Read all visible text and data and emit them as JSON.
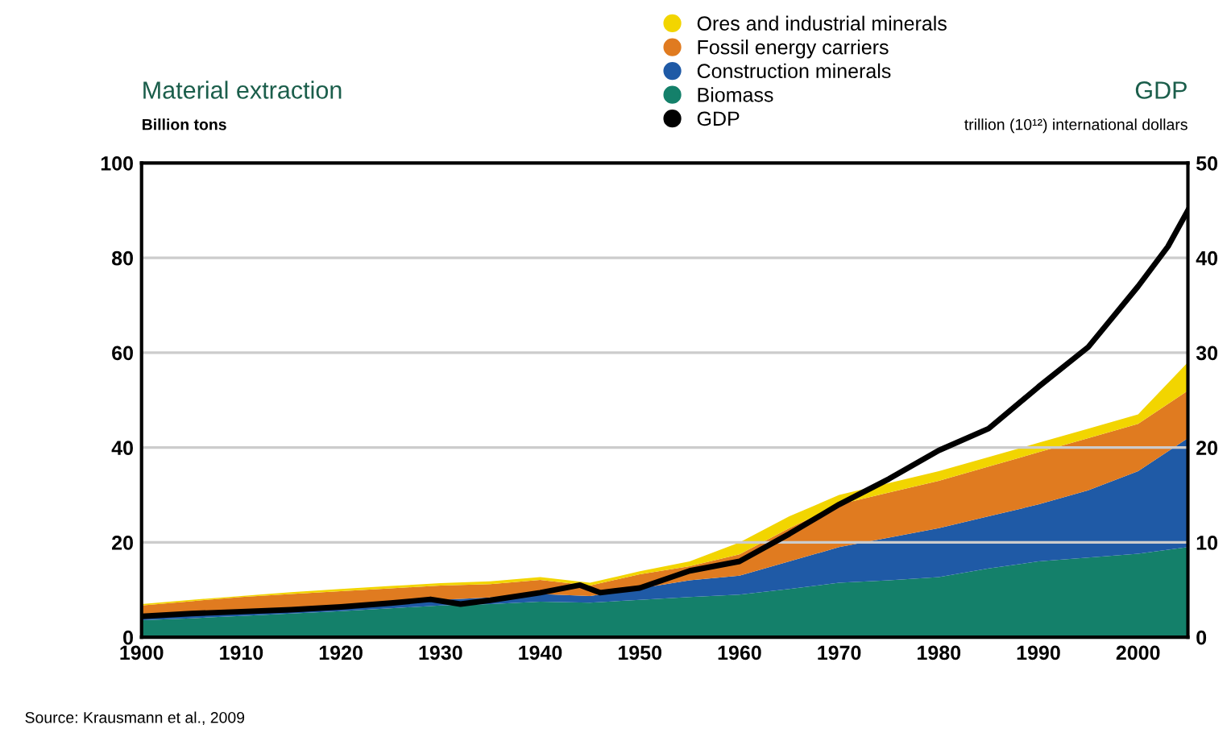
{
  "chart_data": {
    "type": "area",
    "stacked": true,
    "x": [
      1900,
      1905,
      1910,
      1915,
      1920,
      1925,
      1930,
      1935,
      1940,
      1945,
      1950,
      1955,
      1960,
      1965,
      1970,
      1975,
      1980,
      1985,
      1990,
      1995,
      2000,
      2005
    ],
    "series": [
      {
        "name": "Biomass",
        "color": "#14806a",
        "values": [
          3.6,
          4.0,
          4.5,
          5.0,
          5.5,
          6.1,
          6.7,
          7.0,
          7.5,
          7.3,
          7.9,
          8.5,
          9.0,
          10.2,
          11.5,
          12.0,
          12.7,
          14.5,
          16.0,
          16.8,
          17.6,
          19.0
        ]
      },
      {
        "name": "Construction minerals",
        "color": "#1f5aa6",
        "values": [
          0.9,
          1.0,
          1.0,
          1.1,
          1.2,
          1.2,
          1.2,
          1.4,
          1.6,
          1.4,
          2.4,
          3.5,
          4.0,
          5.8,
          7.5,
          9.0,
          10.3,
          11.0,
          12.0,
          14.2,
          17.4,
          23.0
        ]
      },
      {
        "name": "Fossil energy carriers",
        "color": "#e07b20",
        "values": [
          2.2,
          2.6,
          3.0,
          3.0,
          3.0,
          3.0,
          3.0,
          2.8,
          3.0,
          2.2,
          3.0,
          3.0,
          4.5,
          7.0,
          9.0,
          9.5,
          10.0,
          10.5,
          11.0,
          11.0,
          10.0,
          10.0
        ]
      },
      {
        "name": "Ores and industrial minerals",
        "color": "#f2d500",
        "values": [
          0.3,
          0.3,
          0.2,
          0.4,
          0.5,
          0.5,
          0.5,
          0.6,
          0.6,
          0.6,
          0.6,
          1.0,
          2.5,
          2.5,
          2.0,
          2.0,
          2.0,
          2.0,
          2.0,
          2.0,
          2.0,
          6.0
        ]
      },
      {
        "name": "GDP",
        "type": "line",
        "axis": "y2",
        "color": "#000000",
        "x": [
          1900,
          1905,
          1910,
          1915,
          1920,
          1925,
          1929,
          1932,
          1935,
          1940,
          1944,
          1946,
          1950,
          1955,
          1960,
          1965,
          1970,
          1975,
          1980,
          1985,
          1990,
          1995,
          2000,
          2003,
          2005
        ],
        "values": [
          2.2,
          2.5,
          2.7,
          2.9,
          3.2,
          3.6,
          4.0,
          3.5,
          3.9,
          4.7,
          5.5,
          4.7,
          5.2,
          7.0,
          8.0,
          10.9,
          14.0,
          16.7,
          19.7,
          22.0,
          26.4,
          30.6,
          37.0,
          41.2,
          45.0
        ]
      }
    ],
    "ylabel": "Material extraction\nBillion tons",
    "y2label": "GDP\ntrillion (10¹²) international dollars",
    "xlim": [
      1900,
      2005
    ],
    "xticks": [
      1900,
      1910,
      1920,
      1930,
      1940,
      1950,
      1960,
      1970,
      1980,
      1990,
      2000
    ],
    "ylim": [
      0,
      100
    ],
    "yticks": [
      0,
      20,
      40,
      60,
      80,
      100
    ],
    "y2lim": [
      0,
      50
    ],
    "y2ticks": [
      0,
      10,
      20,
      30,
      40,
      50
    ],
    "grid": "y",
    "legend": "top",
    "annotations": [
      "Source: Krausmann et al., 2009"
    ]
  }
}
